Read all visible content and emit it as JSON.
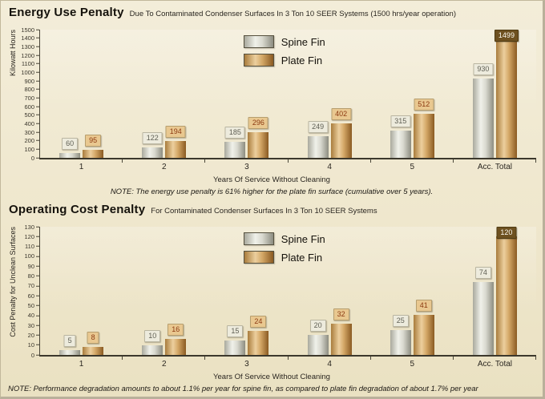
{
  "colors": {
    "spine_fin_bar": "#d9d9cf",
    "plate_fin_bar": "#c89a58",
    "spine_label_bg": "#edebdd",
    "plate_label_bg": "#e9c890",
    "total_label_bg": "#6e5120",
    "page_background": "#efe7cd"
  },
  "chart_data": [
    {
      "type": "bar",
      "title": "Energy Use Penalty",
      "subtitle": "Due To Contaminated Condenser Surfaces In 3 Ton 10 SEER Systems (1500 hrs/year operation)",
      "ylabel": "Kilowatt Hours",
      "xlabel": "Years Of Service Without Cleaning",
      "note": "NOTE: The energy use penalty is 61% higher for the plate fin surface (cumulative over 5 years).",
      "categories": [
        "1",
        "2",
        "3",
        "4",
        "5",
        "Acc. Total"
      ],
      "series": [
        {
          "name": "Spine Fin",
          "values": [
            60,
            122,
            185,
            249,
            315,
            930
          ]
        },
        {
          "name": "Plate Fin",
          "values": [
            95,
            194,
            296,
            402,
            512,
            1499
          ]
        }
      ],
      "ylim": [
        0,
        1500
      ],
      "ytick_step": 100,
      "legend_position": "top-center",
      "grid": false
    },
    {
      "type": "bar",
      "title": "Operating Cost Penalty",
      "subtitle": "For Contaminated Condenser Surfaces In 3 Ton 10 SEER Systems",
      "ylabel": "Cost Penalty for Unclean Surfaces",
      "xlabel": "Years Of Service Without Cleaning",
      "note": "NOTE: Performance degradation amounts to about 1.1% per year for spine fin, as compared to plate fin degradation of about 1.7% per year",
      "categories": [
        "1",
        "2",
        "3",
        "4",
        "5",
        "Acc. Total"
      ],
      "series": [
        {
          "name": "Spine Fin",
          "values": [
            5,
            10,
            15,
            20,
            25,
            74
          ]
        },
        {
          "name": "Plate Fin",
          "values": [
            8,
            16,
            24,
            32,
            41,
            120
          ]
        }
      ],
      "ylim": [
        0,
        130
      ],
      "ytick_step": 10,
      "legend_position": "top-center",
      "grid": false
    }
  ]
}
